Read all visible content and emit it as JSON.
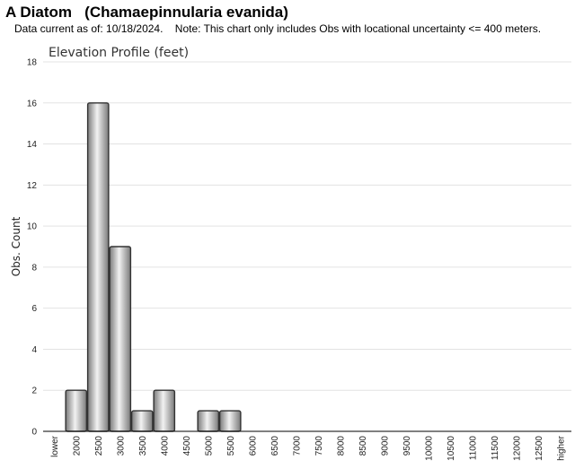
{
  "header": {
    "title": "A Diatom   (Chamaepinnularia evanida)",
    "note": "Data current as of: 10/18/2024.    Note: This chart only includes Obs with locational uncertainty <= 400 meters."
  },
  "chart_data": {
    "type": "bar",
    "title": "Elevation Profile (feet)",
    "xlabel": "",
    "ylabel": "Obs. Count",
    "ylim": [
      0,
      18
    ],
    "yticks": [
      0,
      2,
      4,
      6,
      8,
      10,
      12,
      14,
      16,
      18
    ],
    "grid": true,
    "categories": [
      "lower",
      "2000",
      "2500",
      "3000",
      "3500",
      "4000",
      "4500",
      "5000",
      "5500",
      "6000",
      "6500",
      "7000",
      "7500",
      "8000",
      "8500",
      "9000",
      "9500",
      "10000",
      "10500",
      "11000",
      "11500",
      "12000",
      "12500",
      "higher"
    ],
    "values": [
      0,
      2,
      16,
      9,
      1,
      2,
      0,
      1,
      1,
      0,
      0,
      0,
      0,
      0,
      0,
      0,
      0,
      0,
      0,
      0,
      0,
      0,
      0,
      0
    ],
    "colors": {
      "bar_edge": "#333333",
      "bar_dark": "#7a7a7a",
      "bar_light": "#f2f2f2",
      "grid": "#e3e3e3",
      "axis": "#000000"
    }
  }
}
